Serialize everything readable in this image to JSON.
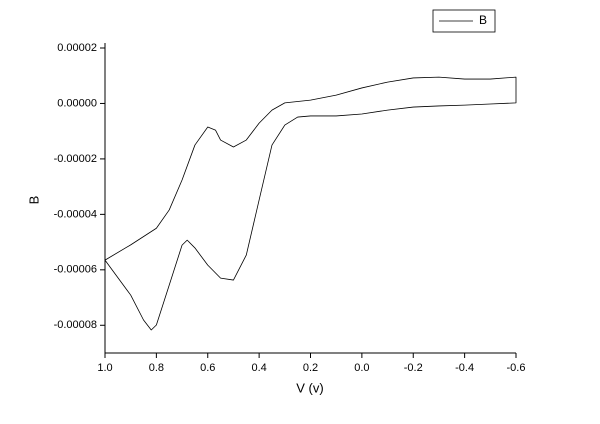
{
  "chart_data": {
    "type": "line",
    "xlabel": "V (v)",
    "ylabel": "B",
    "xlim": [
      1.0,
      -0.6
    ],
    "xticks": [
      {
        "value": 1.0,
        "label": "1.0"
      },
      0.8,
      0.6,
      0.4,
      0.2,
      {
        "value": 0,
        "label": "0.0"
      },
      -0.2,
      -0.4,
      -0.6
    ],
    "ylim": [
      -9e-05,
      2e-05
    ],
    "yticks": [
      -8e-05,
      -6e-05,
      -4e-05,
      -2e-05,
      {
        "value": 0,
        "label": "0.00000"
      },
      2e-05
    ],
    "legend": "top-right",
    "series": [
      {
        "name": "B",
        "color": "#000000",
        "x": [
          1.0,
          0.9,
          0.8,
          0.75,
          0.7,
          0.65,
          0.6,
          0.57,
          0.55,
          0.5,
          0.45,
          0.4,
          0.35,
          0.3,
          0.2,
          0.1,
          0.0,
          -0.1,
          -0.2,
          -0.3,
          -0.4,
          -0.5,
          -0.6,
          -0.6,
          -0.5,
          -0.4,
          -0.3,
          -0.2,
          -0.1,
          0.0,
          0.1,
          0.2,
          0.25,
          0.3,
          0.35,
          0.4,
          0.45,
          0.5,
          0.55,
          0.6,
          0.65,
          0.68,
          0.7,
          0.75,
          0.8,
          0.82,
          0.85,
          0.9,
          1.0
        ],
        "values": [
          -5.65e-05,
          -5.1e-05,
          -4.5e-05,
          -3.84e-05,
          -2.76e-05,
          -1.5e-05,
          -8.5e-06,
          -9.6e-06,
          -1.32e-05,
          -1.57e-05,
          -1.32e-05,
          -7.1e-06,
          -2.4e-06,
          2e-07,
          1.2e-06,
          3e-06,
          5.6e-06,
          7.7e-06,
          9.2e-06,
          9.5e-06,
          8.8e-06,
          8.8e-06,
          9.5e-06,
          2e-07,
          -2e-07,
          -6e-07,
          -9e-07,
          -1.3e-06,
          -2.4e-06,
          -3.8e-06,
          -4.5e-06,
          -4.5e-06,
          -4.9e-06,
          -7.8e-06,
          -1.5e-05,
          -3.48e-05,
          -5.47e-05,
          -6.37e-05,
          -6.3e-05,
          -5.83e-05,
          -5.21e-05,
          -4.93e-05,
          -5.11e-05,
          -6.55e-05,
          -7.99e-05,
          -8.17e-05,
          -7.81e-05,
          -6.91e-05,
          -5.65e-05
        ]
      }
    ]
  }
}
